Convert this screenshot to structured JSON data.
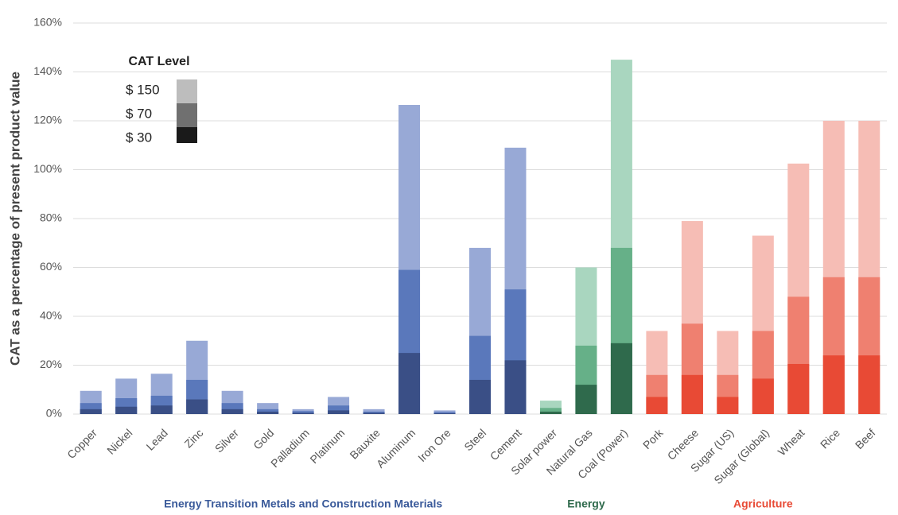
{
  "chart_data": {
    "type": "bar",
    "y_label": "CAT as a percentage of present product value",
    "legend_title": "CAT Level",
    "categories": [
      "Copper",
      "Nickel",
      "Lead",
      "Zinc",
      "Silver",
      "Gold",
      "Palladium",
      "Platinum",
      "Bauxite",
      "Aluminum",
      "Iron Ore",
      "Steel",
      "Cement",
      "Solar power",
      "Natural Gas",
      "Coal (Power)",
      "Pork",
      "Cheese",
      "Sugar (US)",
      "Sugar (Global)",
      "Wheat",
      "Rice",
      "Beef"
    ],
    "series": [
      {
        "name": "$ 150",
        "color": "#bdbdbd",
        "values": [
          9.5,
          14.5,
          16.5,
          30,
          9.5,
          4.5,
          2,
          7,
          2,
          126.5,
          1.5,
          68,
          109,
          5.5,
          60,
          145,
          34,
          79,
          34,
          73,
          102.5,
          120,
          120
        ]
      },
      {
        "name": "$ 70",
        "color": "#707070",
        "values": [
          4.5,
          6.5,
          7.5,
          14,
          4.5,
          2,
          1.2,
          3.5,
          1,
          59,
          0.8,
          32,
          51,
          2.5,
          28,
          68,
          16,
          37,
          16,
          34,
          48,
          56,
          56
        ]
      },
      {
        "name": "$ 30",
        "color": "#1a1a1a",
        "values": [
          2,
          3,
          3.5,
          6,
          2,
          1,
          0.5,
          1.5,
          0.5,
          25,
          0.3,
          14,
          22,
          1,
          12,
          29,
          7,
          16,
          7,
          14.5,
          20.5,
          24,
          24
        ]
      }
    ],
    "groups": [
      {
        "name": "Energy Transition Metals and Construction Materials",
        "count": 13,
        "colors": [
          "#98a9d6",
          "#5a78bb",
          "#3a4f86"
        ],
        "label_color": "#3a5a9a"
      },
      {
        "name": "Energy",
        "count": 3,
        "colors": [
          "#a9d6bf",
          "#66b088",
          "#2f6a4c"
        ],
        "label_color": "#2f6a4c"
      },
      {
        "name": "Agriculture",
        "count": 7,
        "colors": [
          "#f6bdb5",
          "#ef8070",
          "#e84a35"
        ],
        "label_color": "#e84a35"
      }
    ],
    "ylim": [
      0,
      160
    ],
    "yticks": [
      {
        "value": 0,
        "label": "0%"
      },
      {
        "value": 20,
        "label": "20%"
      },
      {
        "value": 40,
        "label": "40%"
      },
      {
        "value": 60,
        "label": "60%"
      },
      {
        "value": 80,
        "label": "80%"
      },
      {
        "value": 100,
        "label": "100%"
      },
      {
        "value": 120,
        "label": "120%"
      },
      {
        "value": 140,
        "label": "140%"
      },
      {
        "value": 160,
        "label": "160%"
      }
    ],
    "grid": true
  }
}
